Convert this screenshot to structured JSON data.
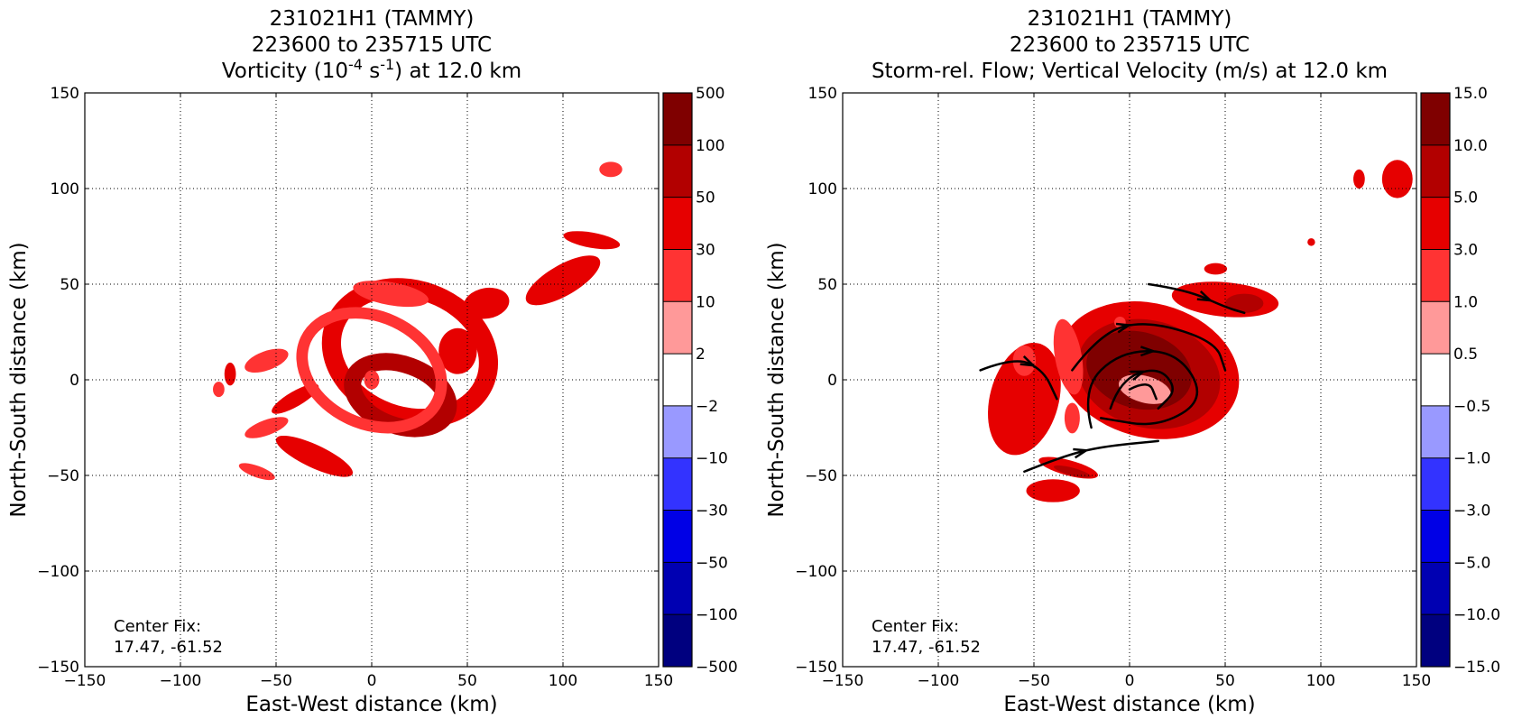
{
  "chart_data": [
    {
      "type": "heatmap",
      "title_lines": [
        "231021H1 (TAMMY)",
        "223600 to 235715 UTC"
      ],
      "title_var_pre": "Vorticity (10",
      "title_var_sup1": "-4",
      "title_var_mid": " s",
      "title_var_sup2": "-1",
      "title_var_post": ") at 12.0 km",
      "xlabel": "East-West distance (km)",
      "ylabel": "North-South distance (km)",
      "xlim": [
        -150,
        150
      ],
      "ylim": [
        -150,
        150
      ],
      "ticks": [
        -150,
        -100,
        -50,
        0,
        50,
        100,
        150
      ],
      "tick_labels": [
        "−150",
        "−100",
        "−50",
        "0",
        "50",
        "100",
        "150"
      ],
      "grid": true,
      "annotation_lines": [
        "Center Fix:",
        "17.47, -61.52"
      ],
      "colorbar": {
        "labels": [
          "500",
          "100",
          "50",
          "30",
          "10",
          "2",
          "−2",
          "−10",
          "−30",
          "−50",
          "−100",
          "−500"
        ],
        "colors": [
          "#7f0000",
          "#b20000",
          "#e60000",
          "#ff3333",
          "#ff9999",
          "#ffffff",
          "#9999ff",
          "#3333ff",
          "#0000e6",
          "#0000b2",
          "#00007f"
        ]
      },
      "features": [
        {
          "level": 2,
          "kind": "ring",
          "cx": 20,
          "cy": 14,
          "rx": 42,
          "ry": 33,
          "width": 10,
          "rot": -20
        },
        {
          "level": 3,
          "kind": "ring",
          "cx": 15,
          "cy": -8,
          "rx": 26,
          "ry": 16,
          "width": 9,
          "rot": -20
        },
        {
          "level": 2,
          "kind": "ellipse",
          "cx": 100,
          "cy": 52,
          "rx": 22,
          "ry": 8,
          "rot": 30
        },
        {
          "level": 2,
          "kind": "ellipse",
          "cx": 115,
          "cy": 73,
          "rx": 15,
          "ry": 4,
          "rot": -10
        },
        {
          "level": 2,
          "kind": "ellipse",
          "cx": 60,
          "cy": 40,
          "rx": 12,
          "ry": 8,
          "rot": 10
        },
        {
          "level": 2,
          "kind": "ellipse",
          "cx": -30,
          "cy": -40,
          "rx": 22,
          "ry": 6,
          "rot": -25
        },
        {
          "level": 2,
          "kind": "ellipse",
          "cx": -40,
          "cy": -10,
          "rx": 14,
          "ry": 4,
          "rot": 30
        },
        {
          "level": 2,
          "kind": "ellipse",
          "cx": 45,
          "cy": 15,
          "rx": 10,
          "ry": 12,
          "rot": 0
        },
        {
          "level": 2,
          "kind": "ellipse",
          "cx": -74,
          "cy": 3,
          "rx": 3,
          "ry": 6,
          "rot": 0
        },
        {
          "level": 1,
          "kind": "ring",
          "cx": 0,
          "cy": 5,
          "rx": 38,
          "ry": 28,
          "width": 6,
          "rot": -25
        },
        {
          "level": 1,
          "kind": "ellipse",
          "cx": 10,
          "cy": 45,
          "rx": 20,
          "ry": 6,
          "rot": -10
        },
        {
          "level": 1,
          "kind": "ellipse",
          "cx": -55,
          "cy": 10,
          "rx": 12,
          "ry": 5,
          "rot": 20
        },
        {
          "level": 1,
          "kind": "ellipse",
          "cx": -55,
          "cy": -25,
          "rx": 12,
          "ry": 4,
          "rot": 20
        },
        {
          "level": 1,
          "kind": "ellipse",
          "cx": -60,
          "cy": -48,
          "rx": 10,
          "ry": 3,
          "rot": -20
        },
        {
          "level": 1,
          "kind": "ellipse",
          "cx": 125,
          "cy": 110,
          "rx": 6,
          "ry": 4,
          "rot": 0
        },
        {
          "level": 1,
          "kind": "ellipse",
          "cx": 0,
          "cy": 0,
          "rx": 4,
          "ry": 5,
          "rot": 0
        },
        {
          "level": 1,
          "kind": "ellipse",
          "cx": -80,
          "cy": -5,
          "rx": 3,
          "ry": 4,
          "rot": 0
        }
      ]
    },
    {
      "type": "heatmap",
      "title_lines": [
        "231021H1 (TAMMY)",
        "223600 to 235715 UTC",
        "Storm-rel. Flow; Vertical Velocity (m/s) at 12.0 km"
      ],
      "xlabel": "East-West distance (km)",
      "ylabel": "North-South distance (km)",
      "xlim": [
        -150,
        150
      ],
      "ylim": [
        -150,
        150
      ],
      "ticks": [
        -150,
        -100,
        -50,
        0,
        50,
        100,
        150
      ],
      "tick_labels": [
        "−150",
        "−100",
        "−50",
        "0",
        "50",
        "100",
        "150"
      ],
      "grid": true,
      "annotation_lines": [
        "Center Fix:",
        "17.47, -61.52"
      ],
      "colorbar": {
        "labels": [
          "15.0",
          "10.0",
          "5.0",
          "3.0",
          "1.0",
          "0.5",
          "−0.5",
          "−1.0",
          "−3.0",
          "−5.0",
          "−10.0",
          "−15.0"
        ],
        "colors": [
          "#7f0000",
          "#b20000",
          "#e60000",
          "#ff3333",
          "#ff9999",
          "#ffffff",
          "#9999ff",
          "#3333ff",
          "#0000e6",
          "#0000b2",
          "#00007f"
        ]
      },
      "features": [
        {
          "level": 2,
          "kind": "ellipse",
          "cx": 10,
          "cy": 5,
          "rx": 48,
          "ry": 35,
          "rot": -15
        },
        {
          "level": 3,
          "kind": "ellipse",
          "cx": 10,
          "cy": 3,
          "rx": 38,
          "ry": 28,
          "rot": -15
        },
        {
          "level": 4,
          "kind": "ellipse",
          "cx": 5,
          "cy": 5,
          "rx": 28,
          "ry": 20,
          "rot": -15
        },
        {
          "level": 0,
          "kind": "ellipse",
          "cx": 8,
          "cy": -5,
          "rx": 14,
          "ry": 7,
          "rot": -15
        },
        {
          "level": 2,
          "kind": "ellipse",
          "cx": 50,
          "cy": 42,
          "rx": 28,
          "ry": 9,
          "rot": -5
        },
        {
          "level": 3,
          "kind": "ellipse",
          "cx": 60,
          "cy": 40,
          "rx": 10,
          "ry": 5,
          "rot": 0
        },
        {
          "level": 2,
          "kind": "ellipse",
          "cx": -55,
          "cy": -10,
          "rx": 18,
          "ry": 30,
          "rot": -15
        },
        {
          "level": 2,
          "kind": "ellipse",
          "cx": -40,
          "cy": -58,
          "rx": 14,
          "ry": 6,
          "rot": 0
        },
        {
          "level": 2,
          "kind": "ellipse",
          "cx": 140,
          "cy": 105,
          "rx": 8,
          "ry": 10,
          "rot": 0
        },
        {
          "level": 2,
          "kind": "ellipse",
          "cx": 120,
          "cy": 105,
          "rx": 3,
          "ry": 5,
          "rot": 0
        },
        {
          "level": 2,
          "kind": "ellipse",
          "cx": 95,
          "cy": 72,
          "rx": 2,
          "ry": 2,
          "rot": 0
        },
        {
          "level": 2,
          "kind": "ellipse",
          "cx": 45,
          "cy": 58,
          "rx": 6,
          "ry": 3,
          "rot": 0
        },
        {
          "level": 1,
          "kind": "ellipse",
          "cx": -32,
          "cy": 12,
          "rx": 7,
          "ry": 20,
          "rot": 10
        },
        {
          "level": 1,
          "kind": "ellipse",
          "cx": -55,
          "cy": 10,
          "rx": 6,
          "ry": 8,
          "rot": 0
        },
        {
          "level": 2,
          "kind": "ellipse",
          "cx": -32,
          "cy": -46,
          "rx": 16,
          "ry": 4,
          "rot": -15
        },
        {
          "level": 3,
          "kind": "ellipse",
          "cx": -30,
          "cy": -48,
          "rx": 10,
          "ry": 2,
          "rot": -15
        },
        {
          "level": 1,
          "kind": "ellipse",
          "cx": -30,
          "cy": -20,
          "rx": 4,
          "ry": 8,
          "rot": 0
        },
        {
          "level": 1,
          "kind": "ellipse",
          "cx": -5,
          "cy": 30,
          "rx": 3,
          "ry": 3,
          "rot": 0
        }
      ],
      "streamlines": [
        {
          "points": [
            [
              -78,
              5
            ],
            [
              -60,
              12
            ],
            [
              -45,
              5
            ],
            [
              -38,
              -10
            ]
          ],
          "arrow": true
        },
        {
          "points": [
            [
              -30,
              5
            ],
            [
              -15,
              25
            ],
            [
              10,
              31
            ],
            [
              45,
              20
            ],
            [
              50,
              5
            ]
          ],
          "arrow": true
        },
        {
          "points": [
            [
              -20,
              -25
            ],
            [
              -25,
              -5
            ],
            [
              -5,
              15
            ],
            [
              25,
              15
            ],
            [
              40,
              -10
            ],
            [
              15,
              -25
            ],
            [
              -15,
              -20
            ]
          ],
          "arrow": true
        },
        {
          "points": [
            [
              -10,
              -15
            ],
            [
              -5,
              0
            ],
            [
              15,
              7
            ],
            [
              25,
              -5
            ],
            [
              15,
              -15
            ]
          ],
          "arrow": true
        },
        {
          "points": [
            [
              0,
              -5
            ],
            [
              10,
              0
            ],
            [
              14,
              -10
            ]
          ],
          "arrow": false
        },
        {
          "points": [
            [
              -55,
              -48
            ],
            [
              -35,
              -40
            ],
            [
              -15,
              -35
            ],
            [
              15,
              -32
            ]
          ],
          "arrow": true
        },
        {
          "points": [
            [
              10,
              50
            ],
            [
              30,
              47
            ],
            [
              50,
              38
            ],
            [
              60,
              35
            ]
          ],
          "arrow": true
        }
      ]
    }
  ]
}
